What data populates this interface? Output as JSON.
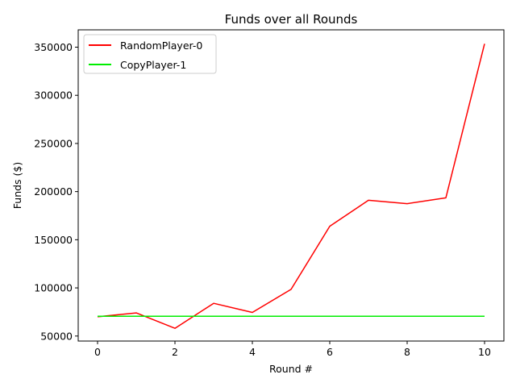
{
  "chart_data": {
    "type": "line",
    "title": "Funds over all Rounds",
    "xlabel": "Round #",
    "ylabel": "Funds ($)",
    "x": [
      0,
      1,
      2,
      3,
      4,
      5,
      6,
      7,
      8,
      9,
      10
    ],
    "xlim": [
      -0.5,
      10.5
    ],
    "ylim": [
      44800,
      368000
    ],
    "xticks": [
      0,
      2,
      4,
      6,
      8,
      10
    ],
    "yticks": [
      50000,
      100000,
      150000,
      200000,
      250000,
      300000,
      350000
    ],
    "grid": false,
    "legend_position": "top-left",
    "series": [
      {
        "name": "RandomPlayer-0",
        "color": "#ff0000",
        "values": [
          70000,
          74000,
          58000,
          84000,
          74500,
          98500,
          164000,
          191000,
          187500,
          193500,
          353500
        ]
      },
      {
        "name": "CopyPlayer-1",
        "color": "#00ee00",
        "values": [
          70500,
          70500,
          70500,
          70500,
          70500,
          70500,
          70500,
          70500,
          70500,
          70500,
          70500
        ]
      }
    ]
  }
}
